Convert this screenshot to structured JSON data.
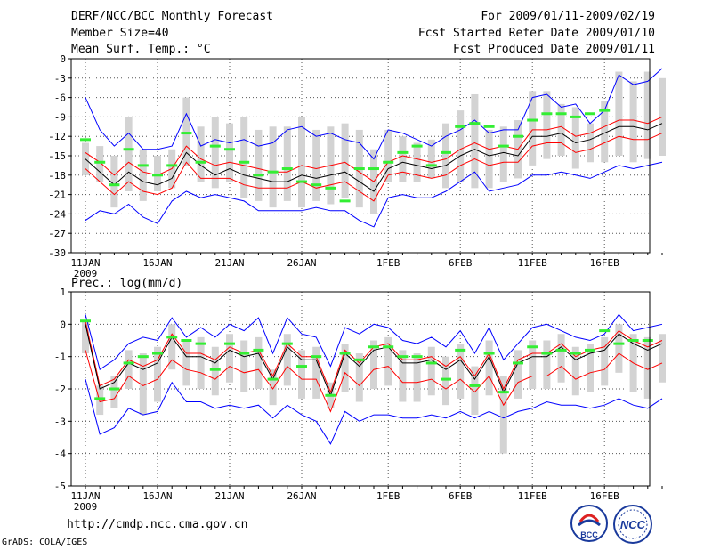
{
  "header": {
    "title": "DERF/NCC/BCC Monthly Forecast",
    "member_size": "Member Size=40",
    "variable": "Mean Surf. Temp.: °C",
    "period": "For 2009/01/11-2009/02/19",
    "start": "Fcst Started Refer Date 2009/01/10",
    "produced": "Fcst Produced Date 2009/01/11"
  },
  "footer": {
    "url": "http://cmdp.ncc.cma.gov.cn",
    "grads": "GrADS: COLA/IGES",
    "logo_left": "BCC",
    "logo_right": "NCC"
  },
  "colors": {
    "envelope": "#0000ff",
    "spread": "#ff0000",
    "mean": "#000000",
    "box": "#d3d3d3",
    "observed": "#33ee33",
    "grid": "#555555"
  },
  "chart_data": [
    {
      "type": "line",
      "title": "Mean Surf. Temp.: °C",
      "ylim": [
        -30,
        0
      ],
      "yticks": [
        0,
        -3,
        -6,
        -9,
        -12,
        -15,
        -18,
        -21,
        -24,
        -27,
        -30
      ],
      "xlabels": [
        {
          "day": 0,
          "label": "11JAN"
        },
        {
          "day": 5,
          "label": "16JAN"
        },
        {
          "day": 10,
          "label": "21JAN"
        },
        {
          "day": 15,
          "label": "26JAN"
        },
        {
          "day": 21,
          "label": "1FEB"
        },
        {
          "day": 26,
          "label": "6FEB"
        },
        {
          "day": 31,
          "label": "11FEB"
        },
        {
          "day": 36,
          "label": "16FEB"
        }
      ],
      "year_label": "2009",
      "mean": [
        -15.5,
        -17.5,
        -19.5,
        -17.5,
        -19,
        -19.5,
        -18.5,
        -14.5,
        -16.5,
        -18,
        -17,
        -18,
        -18.5,
        -19,
        -19,
        -18,
        -18.5,
        -18,
        -17.5,
        -19,
        -20.5,
        -17,
        -16,
        -16.5,
        -17,
        -16.5,
        -15,
        -14,
        -15,
        -14.5,
        -15,
        -12,
        -12,
        -11.5,
        -13,
        -12.5,
        -11.5,
        -10.5,
        -10.5,
        -11,
        -10
      ],
      "upper_red": [
        -14.5,
        -16,
        -18,
        -16,
        -17.5,
        -18,
        -17,
        -13.5,
        -15.5,
        -16.5,
        -16,
        -16.5,
        -17,
        -17.5,
        -17.5,
        -16.5,
        -17,
        -16.5,
        -16,
        -17.5,
        -19,
        -16,
        -15,
        -15.5,
        -16,
        -15.5,
        -14,
        -13,
        -14,
        -13.5,
        -14,
        -11,
        -11,
        -10.5,
        -12,
        -11.5,
        -10.5,
        -9.5,
        -9.5,
        -10,
        -9
      ],
      "lower_red": [
        -17,
        -19,
        -21,
        -19,
        -20.5,
        -21,
        -20,
        -16,
        -18.5,
        -18.5,
        -18.5,
        -19.5,
        -20,
        -20,
        -20,
        -19,
        -20,
        -19.5,
        -19,
        -20.5,
        -22,
        -18,
        -17.5,
        -18,
        -18.5,
        -18,
        -16.5,
        -15.5,
        -16.5,
        -16,
        -16,
        -13.5,
        -13,
        -13,
        -14.5,
        -14,
        -13,
        -12,
        -12.5,
        -12.5,
        -11.5
      ],
      "upper_blue": [
        -6,
        -11,
        -13.5,
        -11.5,
        -14,
        -14,
        -13.5,
        -8.5,
        -13.5,
        -12.5,
        -13,
        -12.5,
        -13.5,
        -13,
        -11,
        -10.5,
        -12,
        -11.5,
        -12.5,
        -13,
        -15.5,
        -11,
        -11.5,
        -12.5,
        -13.5,
        -12,
        -11,
        -9.5,
        -11.5,
        -11,
        -11,
        -6,
        -5.5,
        -7.5,
        -7,
        -10,
        -8,
        -2.5,
        -4,
        -3.5,
        -1.5
      ],
      "lower_blue": [
        -25,
        -23.5,
        -24,
        -22.5,
        -24.5,
        -25.5,
        -22,
        -20.5,
        -21.5,
        -21,
        -21.5,
        -22,
        -23.5,
        -23.5,
        -23.5,
        -23.5,
        -23,
        -23.5,
        -23.5,
        -25,
        -26,
        -21.5,
        -21,
        -21.5,
        -21.5,
        -20.5,
        -19,
        -17.5,
        -20.5,
        -20,
        -19.5,
        -18,
        -18,
        -17.5,
        -18,
        -18.5,
        -17.5,
        -16.5,
        -17,
        -16.5,
        -16
      ],
      "box_high": [
        -13,
        -13.5,
        -15,
        -9,
        -14,
        -15,
        -14,
        -6,
        -10.5,
        -9,
        -10,
        -9,
        -11,
        -10.5,
        -10.5,
        -9,
        -11,
        -10.5,
        -10,
        -11,
        -14,
        -11,
        -12,
        -13,
        -12.5,
        -10,
        -8,
        -5.5,
        -11,
        -10.5,
        -9.5,
        -5,
        -5,
        -7,
        -7.5,
        -10,
        -6.5,
        -2,
        -3.5,
        -2,
        -3
      ],
      "box_low": [
        -18,
        -19,
        -23,
        -20.5,
        -22,
        -20.5,
        -20,
        -16.5,
        -19,
        -20,
        -19,
        -21.5,
        -22,
        -23,
        -22,
        -23,
        -22,
        -22.5,
        -21.5,
        -23,
        -24,
        -19,
        -19,
        -19,
        -18.5,
        -20,
        -19,
        -20,
        -20,
        -19,
        -18.5,
        -16.5,
        -15.5,
        -15,
        -17,
        -16,
        -16,
        -15,
        -16,
        -15.5,
        -15
      ],
      "observed": [
        -12.5,
        -16,
        -19.5,
        -14,
        -16.5,
        -18,
        -16.5,
        -11.5,
        -16,
        -13.5,
        -14,
        -16,
        -18,
        -17.5,
        -17,
        -19,
        -19.5,
        -20,
        -22,
        -17,
        -17,
        -16,
        -14.5,
        -13.5,
        -16.5,
        -14.5,
        -10.5,
        -10,
        -10.5,
        -13.5,
        -12,
        -9.5,
        -8.5,
        -8.5,
        -9,
        -8.5,
        -8
      ]
    },
    {
      "type": "line",
      "title": "Prec.: log(mm/d)",
      "ylim": [
        -5,
        1
      ],
      "yticks": [
        1,
        0,
        -1,
        -2,
        -3,
        -4,
        -5
      ],
      "xlabels": [
        {
          "day": 0,
          "label": "11JAN"
        },
        {
          "day": 5,
          "label": "16JAN"
        },
        {
          "day": 10,
          "label": "21JAN"
        },
        {
          "day": 15,
          "label": "26JAN"
        },
        {
          "day": 21,
          "label": "1FEB"
        },
        {
          "day": 26,
          "label": "6FEB"
        },
        {
          "day": 31,
          "label": "11FEB"
        },
        {
          "day": 36,
          "label": "16FEB"
        }
      ],
      "year_label": "2009",
      "mean": [
        0,
        -2,
        -1.8,
        -1.2,
        -1.4,
        -1.2,
        -0.4,
        -1,
        -1,
        -1.2,
        -0.8,
        -1,
        -0.9,
        -1.7,
        -0.7,
        -1.1,
        -1.1,
        -2.2,
        -0.9,
        -1.3,
        -0.8,
        -0.7,
        -1.2,
        -1.2,
        -1.1,
        -1.4,
        -1.1,
        -1.7,
        -1,
        -2.1,
        -1.2,
        -1,
        -1,
        -0.7,
        -1.1,
        -0.9,
        -0.8,
        -0.3,
        -0.6,
        -0.8,
        -0.6
      ],
      "upper_red": [
        0.1,
        -1.9,
        -1.7,
        -1.1,
        -1.3,
        -1.1,
        -0.3,
        -0.9,
        -0.9,
        -1.1,
        -0.7,
        -0.9,
        -0.8,
        -1.6,
        -0.6,
        -1,
        -1,
        -2.1,
        -0.8,
        -1.2,
        -0.7,
        -0.6,
        -1.1,
        -1.1,
        -1,
        -1.3,
        -1,
        -1.6,
        -0.9,
        -2,
        -1.1,
        -0.9,
        -0.9,
        -0.6,
        -1,
        -0.8,
        -0.7,
        -0.2,
        -0.5,
        -0.7,
        -0.5
      ],
      "lower_red": [
        -0.8,
        -2.4,
        -2.3,
        -1.6,
        -1.9,
        -1.7,
        -1.1,
        -1.4,
        -1.5,
        -1.7,
        -1.3,
        -1.5,
        -1.4,
        -2,
        -1.3,
        -1.7,
        -1.7,
        -2.7,
        -1.5,
        -1.9,
        -1.4,
        -1.3,
        -1.8,
        -1.8,
        -1.7,
        -2,
        -1.7,
        -2.1,
        -1.6,
        -2.5,
        -1.8,
        -1.6,
        -1.6,
        -1.3,
        -1.7,
        -1.5,
        -1.4,
        -0.9,
        -1.2,
        -1.4,
        -1.2
      ],
      "upper_blue": [
        0.3,
        -1.4,
        -1.1,
        -0.6,
        -0.4,
        -0.5,
        0.2,
        -0.4,
        -0.1,
        -0.4,
        0,
        -0.2,
        0.2,
        -0.9,
        0.2,
        -0.3,
        -0.4,
        -1.3,
        -0.1,
        -0.3,
        0,
        -0.1,
        -0.5,
        -0.6,
        -0.4,
        -0.7,
        -0.2,
        -0.9,
        -0.1,
        -1.1,
        -0.6,
        -0.1,
        0,
        -0.2,
        -0.4,
        -0.5,
        -0.3,
        0.3,
        -0.2,
        -0.1,
        0
      ],
      "lower_blue": [
        -1.7,
        -3.4,
        -3.2,
        -2.6,
        -2.8,
        -2.7,
        -1.8,
        -2.4,
        -2.4,
        -2.6,
        -2.5,
        -2.6,
        -2.5,
        -2.9,
        -2.5,
        -2.8,
        -3,
        -3.7,
        -2.7,
        -3,
        -2.8,
        -2.8,
        -2.9,
        -2.9,
        -2.8,
        -2.9,
        -2.7,
        -2.9,
        -2.7,
        -2.9,
        -2.7,
        -2.6,
        -2.4,
        -2.5,
        -2.5,
        -2.6,
        -2.5,
        -2.3,
        -2.5,
        -2.6,
        -2.3
      ],
      "box_high": [
        0.1,
        -1.9,
        -1.6,
        -0.8,
        -0.9,
        -0.7,
        0,
        -0.5,
        -0.4,
        -0.7,
        -0.3,
        -0.5,
        -0.4,
        -1.4,
        -0.3,
        -0.8,
        -0.7,
        -1.8,
        -0.6,
        -0.9,
        -0.5,
        -0.4,
        -0.8,
        -0.9,
        -0.7,
        -1,
        -0.6,
        -1.3,
        -0.5,
        -1.6,
        -0.8,
        -0.5,
        -0.5,
        -0.3,
        -0.7,
        -0.6,
        -0.4,
        0,
        -0.3,
        -0.4,
        -0.3
      ],
      "box_low": [
        -0.9,
        -2.8,
        -2.6,
        -2,
        -2.8,
        -2.4,
        -1.4,
        -1.9,
        -2,
        -2.2,
        -1.8,
        -2.1,
        -2,
        -2.5,
        -1.9,
        -2.3,
        -2.3,
        -2.6,
        -2.1,
        -2.4,
        -2,
        -1.9,
        -2.4,
        -2.4,
        -2.2,
        -2.5,
        -2.3,
        -2.8,
        -2.2,
        -4,
        -2.3,
        -2,
        -2,
        -1.8,
        -2.2,
        -2.1,
        -1.9,
        -1.5,
        -2.1,
        -2.3,
        -1.8
      ],
      "observed": [
        0.1,
        -2.3,
        -2,
        -1.2,
        -1,
        -0.9,
        -0.4,
        -0.5,
        -0.6,
        -1.4,
        -0.6,
        -0.9,
        -0.8,
        -1.7,
        -0.6,
        -1.3,
        -1,
        -2.2,
        -0.9,
        -1.1,
        -0.7,
        -0.7,
        -1,
        -1,
        -1.2,
        -1.7,
        -0.8,
        -1.9,
        -0.9,
        -2.1,
        -1.2,
        -0.7,
        -0.9,
        -0.8,
        -0.9,
        -0.8,
        -0.2,
        -0.6,
        -0.5,
        -0.5
      ]
    }
  ]
}
